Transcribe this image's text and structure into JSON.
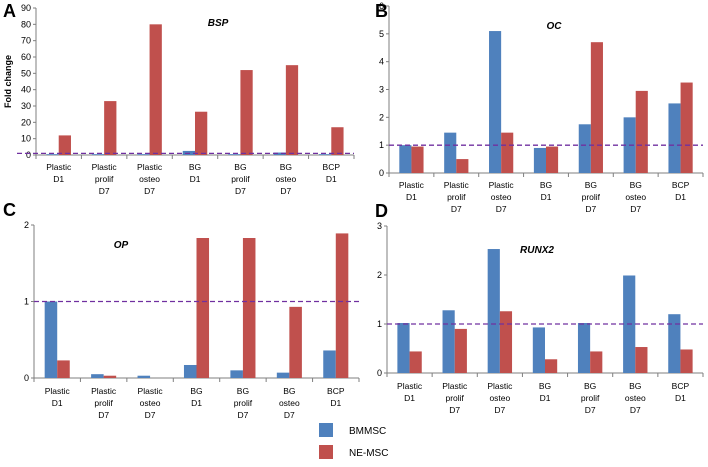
{
  "legend": [
    {
      "name": "BMMSC",
      "color": "#4f81bd"
    },
    {
      "name": "NE-MSC",
      "color": "#c0504d"
    }
  ],
  "reference_line_color": "#7030a0",
  "chart_data": [
    {
      "type": "bar",
      "panel": "A",
      "title": "BSP",
      "ylabel": "Fold change",
      "ylim": [
        0,
        90
      ],
      "yticks": [
        "0",
        "10",
        "20",
        "30",
        "40",
        "50",
        "60",
        "70",
        "80",
        "90"
      ],
      "reference_line": 1,
      "categories": [
        [
          "Plastic",
          "D1"
        ],
        [
          "Plastic",
          "prolif",
          "D7"
        ],
        [
          "Plastic",
          "osteo",
          "D7"
        ],
        [
          "BG",
          "D1"
        ],
        [
          "BG",
          "prolif",
          "D7"
        ],
        [
          "BG",
          "osteo",
          "D7"
        ],
        [
          "BCP",
          "D1"
        ]
      ],
      "series": [
        {
          "name": "BMMSC",
          "values": [
            0.5,
            0.5,
            0.5,
            2.5,
            0.5,
            1.5,
            0.5
          ]
        },
        {
          "name": "NE-MSC",
          "values": [
            12,
            33,
            80,
            26.5,
            52,
            55,
            17
          ]
        }
      ]
    },
    {
      "type": "bar",
      "panel": "B",
      "title": "OC",
      "ylabel": "",
      "ylim": [
        0,
        6
      ],
      "yticks": [
        "0",
        "1",
        "2",
        "3",
        "4",
        "5",
        "6"
      ],
      "reference_line": 1,
      "categories": [
        [
          "Plastic",
          "D1"
        ],
        [
          "Plastic",
          "prolif",
          "D7"
        ],
        [
          "Plastic",
          "osteo",
          "D7"
        ],
        [
          "BG",
          "D1"
        ],
        [
          "BG",
          "prolif",
          "D7"
        ],
        [
          "BG",
          "osteo",
          "D7"
        ],
        [
          "BCP",
          "D1"
        ]
      ],
      "series": [
        {
          "name": "BMMSC",
          "values": [
            1.0,
            1.45,
            5.1,
            0.9,
            1.75,
            2.0,
            2.5
          ]
        },
        {
          "name": "NE-MSC",
          "values": [
            0.95,
            0.5,
            1.45,
            0.95,
            4.7,
            2.95,
            3.25
          ]
        }
      ]
    },
    {
      "type": "bar",
      "panel": "C",
      "title": "OP",
      "ylabel": "",
      "ylim": [
        0,
        2
      ],
      "yticks": [
        "0",
        "1",
        "2"
      ],
      "reference_line": 1,
      "categories": [
        [
          "Plastic",
          "D1"
        ],
        [
          "Plastic",
          "prolif",
          "D7"
        ],
        [
          "Plastic",
          "osteo",
          "D7"
        ],
        [
          "BG",
          "D1"
        ],
        [
          "BG",
          "prolif",
          "D7"
        ],
        [
          "BG",
          "osteo",
          "D7"
        ],
        [
          "BCP",
          "D1"
        ]
      ],
      "series": [
        {
          "name": "BMMSC",
          "values": [
            1.0,
            0.05,
            0.03,
            0.17,
            0.1,
            0.07,
            0.36
          ]
        },
        {
          "name": "NE-MSC",
          "values": [
            0.23,
            0.03,
            0.0,
            1.83,
            1.83,
            0.93,
            1.89
          ]
        }
      ]
    },
    {
      "type": "bar",
      "panel": "D",
      "title": "RUNX2",
      "ylabel": "",
      "ylim": [
        0,
        3
      ],
      "yticks": [
        "0",
        "1",
        "2",
        "3"
      ],
      "reference_line": 1,
      "categories": [
        [
          "Plastic",
          "D1"
        ],
        [
          "Plastic",
          "prolif",
          "D7"
        ],
        [
          "Plastic",
          "osteo",
          "D7"
        ],
        [
          "BG",
          "D1"
        ],
        [
          "BG",
          "prolif",
          "D7"
        ],
        [
          "BG",
          "osteo",
          "D7"
        ],
        [
          "BCP",
          "D1"
        ]
      ],
      "series": [
        {
          "name": "BMMSC",
          "values": [
            1.02,
            1.28,
            2.53,
            0.93,
            1.02,
            1.99,
            1.2
          ]
        },
        {
          "name": "NE-MSC",
          "values": [
            0.44,
            0.9,
            1.26,
            0.28,
            0.44,
            0.53,
            0.48
          ]
        }
      ]
    }
  ]
}
